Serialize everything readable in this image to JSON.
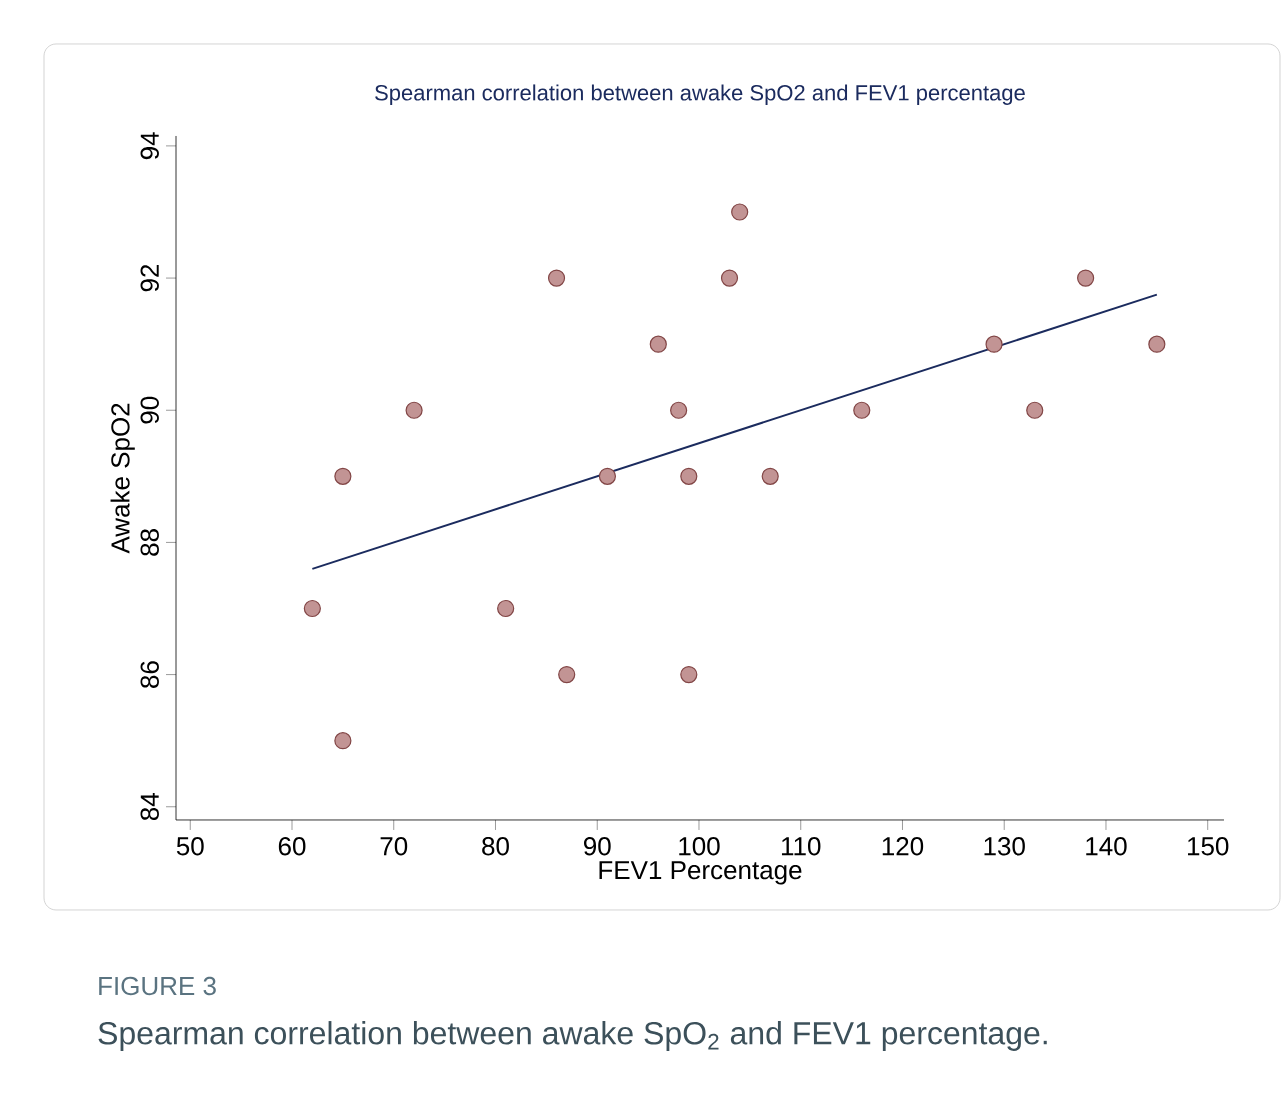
{
  "chart_data": {
    "type": "scatter",
    "title": "Spearman correlation between awake SpO2 and FEV1 percentage",
    "xlabel": "FEV1 Percentage",
    "ylabel": "Awake SpO2",
    "xlim": [
      48.6,
      151.6
    ],
    "ylim": [
      83.8,
      94.15
    ],
    "xticks": [
      50,
      60,
      70,
      80,
      90,
      100,
      110,
      120,
      130,
      140,
      150
    ],
    "yticks": [
      84,
      86,
      88,
      90,
      92,
      94
    ],
    "grid": false,
    "series": [
      {
        "color": "#c29494",
        "marker": "circle",
        "x": [
          62,
          65,
          65,
          72,
          81,
          86,
          87,
          91,
          96,
          98,
          99,
          99,
          103,
          104,
          107,
          116,
          129,
          133,
          138,
          145
        ],
        "values": [
          87,
          85,
          89,
          90,
          87,
          92,
          86,
          89,
          91,
          90,
          89,
          86,
          92,
          93,
          89,
          90,
          91,
          90,
          92,
          91
        ]
      },
      {
        "type": "line",
        "marker": "none",
        "color": "#1b2b5e",
        "x": [
          62,
          145
        ],
        "values": [
          87.6,
          91.75
        ]
      }
    ],
    "annotations": [
      "FIGURE 3",
      "Spearman correlation between awake SpO$_{2}$ and FEV1 percentage."
    ]
  }
}
